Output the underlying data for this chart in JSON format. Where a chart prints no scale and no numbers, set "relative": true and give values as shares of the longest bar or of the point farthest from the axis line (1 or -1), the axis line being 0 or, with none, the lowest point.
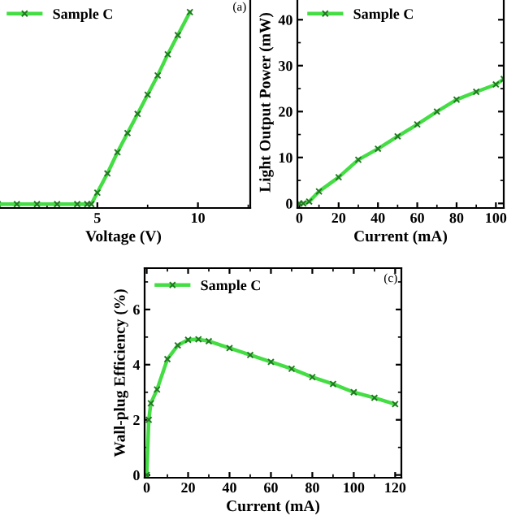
{
  "chart_data": [
    {
      "type": "line",
      "xlabel": "Voltage (V)",
      "relative": true,
      "xlim": [
        0,
        12.6
      ],
      "xticks": [
        5,
        10
      ],
      "tick_labels": "x",
      "legend": "top left",
      "marker": "cross",
      "annotations": [
        "(a)"
      ],
      "x": [
        0,
        1,
        2,
        3,
        4,
        4.5,
        4.7,
        5,
        5.5,
        6,
        6.5,
        7,
        7.5,
        8,
        8.5,
        9,
        9.6
      ],
      "series": [
        {
          "name": "Sample C",
          "color": "#44dd44",
          "values": [
            0,
            0,
            0,
            0,
            0,
            0,
            0,
            0.06,
            0.16,
            0.27,
            0.37,
            0.47,
            0.57,
            0.67,
            0.78,
            0.88,
            1
          ]
        }
      ]
    },
    {
      "type": "line",
      "xlabel": "Current (mA)",
      "ylabel": "Light Output Power (mW)",
      "xlim": [
        -1,
        104
      ],
      "ylim": [
        -1,
        45
      ],
      "xticks": [
        0,
        20,
        40,
        60,
        80,
        100
      ],
      "yticks": [
        0,
        10,
        20,
        30,
        40
      ],
      "legend": "top left",
      "marker": "cross",
      "x": [
        0,
        2,
        5,
        10,
        20,
        30,
        40,
        50,
        60,
        70,
        80,
        90,
        100,
        104
      ],
      "series": [
        {
          "name": "Sample C",
          "color": "#44dd44",
          "values": [
            0,
            0,
            0.4,
            2.6,
            5.7,
            9.5,
            11.9,
            14.6,
            17.2,
            20,
            22.6,
            24.3,
            25.9,
            27.1
          ]
        }
      ]
    },
    {
      "type": "line",
      "xlabel": "Current (mA)",
      "ylabel": "Wall-plug Efficiency (%)",
      "xlim": [
        -1,
        123
      ],
      "ylim": [
        -0.1,
        7.5
      ],
      "xticks": [
        0,
        20,
        40,
        60,
        80,
        100,
        120
      ],
      "yticks": [
        0,
        2,
        4,
        6
      ],
      "legend": "top left",
      "marker": "cross",
      "annotations": [
        "(c)"
      ],
      "x": [
        0,
        1,
        2,
        5,
        10,
        15,
        20,
        25,
        30,
        40,
        50,
        60,
        70,
        80,
        90,
        100,
        110,
        120
      ],
      "series": [
        {
          "name": "Sample C",
          "color": "#44dd44",
          "values": [
            0,
            2,
            2.6,
            3.1,
            4.2,
            4.7,
            4.9,
            4.92,
            4.85,
            4.6,
            4.35,
            4.1,
            3.85,
            3.55,
            3.3,
            3.0,
            2.8,
            2.57
          ]
        }
      ]
    }
  ]
}
